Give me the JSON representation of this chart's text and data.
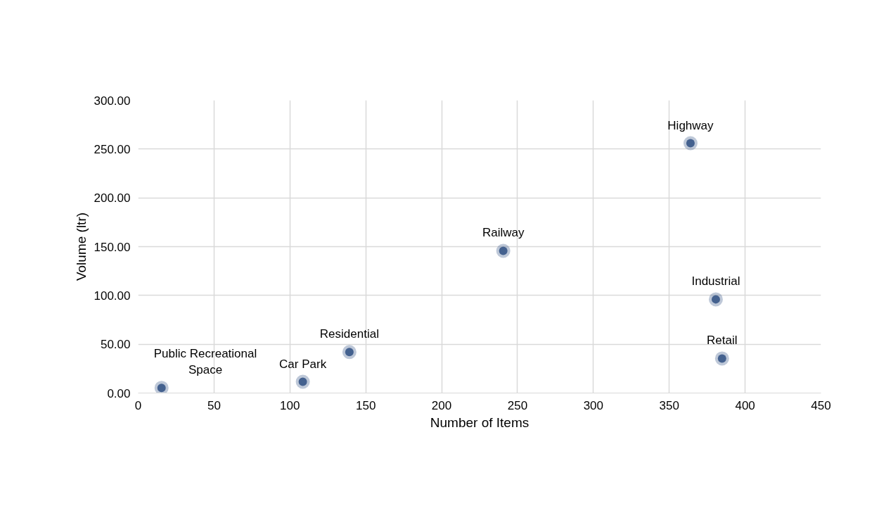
{
  "chart_data": {
    "type": "scatter",
    "xlabel": "Number of Items",
    "ylabel": "Volume (ltr)",
    "series": [
      {
        "color": "#44628f",
        "x": [
          15.4,
          108.5,
          139.2,
          240.6,
          364,
          380.7,
          384.8
        ],
        "values": [
          5.3,
          11.5,
          42,
          145.7,
          256,
          96,
          35.4
        ]
      }
    ],
    "annotations": [
      {
        "text": "Public Recreational Space",
        "x": 15.4,
        "y": 5.3
      },
      {
        "text": "Car Park",
        "x": 108.5,
        "y": 11.5
      },
      {
        "text": "Residential",
        "x": 139.2,
        "y": 42
      },
      {
        "text": "Railway",
        "x": 240.6,
        "y": 145.7
      },
      {
        "text": "Highway",
        "x": 364,
        "y": 256
      },
      {
        "text": "Industrial",
        "x": 380.7,
        "y": 96
      },
      {
        "text": "Retail",
        "x": 384.8,
        "y": 35.4
      }
    ],
    "xlim": [
      0,
      450
    ],
    "xticks": [
      0,
      50,
      100,
      150,
      200,
      250,
      300,
      350,
      400,
      450
    ],
    "ylim": [
      0,
      300
    ],
    "yticks": [
      {
        "value": 0,
        "label": "0.00"
      },
      {
        "value": 50,
        "label": "50.00"
      },
      {
        "value": 100,
        "label": "100.00"
      },
      {
        "value": 150,
        "label": "150.00"
      },
      {
        "value": 200,
        "label": "200.00"
      },
      {
        "value": 250,
        "label": "250.00"
      },
      {
        "value": 300,
        "label": "300.00"
      }
    ],
    "grid": true,
    "marker": "circle"
  }
}
